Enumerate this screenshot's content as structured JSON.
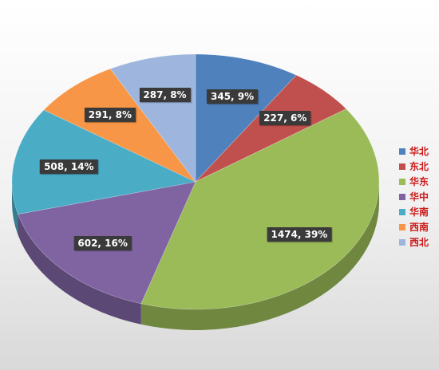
{
  "chart_data": {
    "type": "pie",
    "title": "",
    "categories": [
      "华北",
      "东北",
      "华东",
      "华中",
      "华南",
      "西南",
      "西北"
    ],
    "values": [
      345,
      227,
      1474,
      602,
      508,
      291,
      287
    ],
    "percents": [
      9,
      6,
      39,
      16,
      14,
      8,
      8
    ],
    "labels": [
      "345, 9%",
      "227, 6%",
      "1474, 39%",
      "602, 16%",
      "508, 14%",
      "291, 8%",
      "287, 8%"
    ],
    "colors": [
      "#4f81bd",
      "#c0504d",
      "#9bbb59",
      "#8064a2",
      "#4bacc6",
      "#f79646",
      "#9eb6de"
    ],
    "style": "3d-tilted",
    "legend": "right"
  }
}
